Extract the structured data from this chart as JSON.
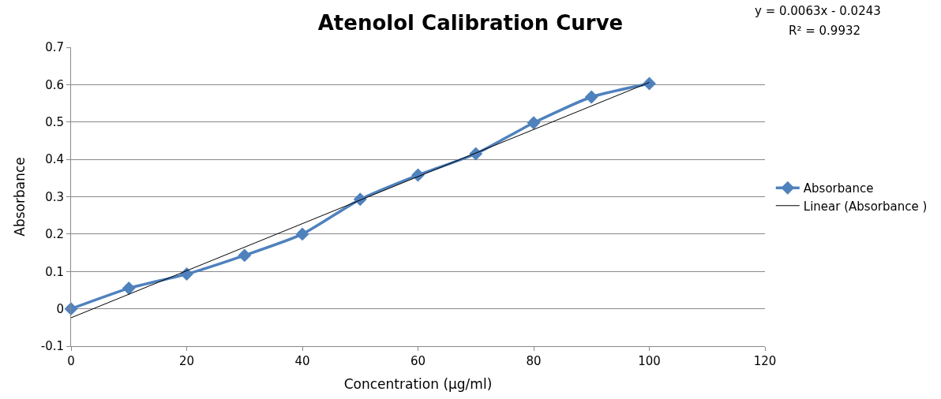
{
  "chart_data": {
    "type": "line",
    "title": "Atenolol Calibration Curve",
    "xlabel": "Concentration (µg/ml)",
    "ylabel": "Absorbance",
    "series": [
      {
        "name": "Absorbance",
        "color": "#4f81bd",
        "marker": "diamond",
        "line_style": "solid",
        "x": [
          0,
          10,
          20,
          30,
          40,
          50,
          60,
          70,
          80,
          90,
          100
        ],
        "values": [
          0,
          0.055,
          0.093,
          0.143,
          0.2,
          0.293,
          0.358,
          0.415,
          0.498,
          0.567,
          0.603
        ]
      },
      {
        "name": "Linear (Absorbance )",
        "color": "#000000",
        "marker": "none",
        "line_style": "solid",
        "x": [
          0,
          100
        ],
        "values": [
          -0.024,
          0.606
        ]
      }
    ],
    "annotations": [
      "y = 0.0063x - 0.0243",
      "R² = 0.9932"
    ],
    "xlim": [
      0,
      120
    ],
    "xticks": [
      0,
      20,
      40,
      60,
      80,
      100,
      120
    ],
    "ylim": [
      -0.1,
      0.7
    ],
    "yticks": [
      -0.1,
      0,
      0.1,
      0.2,
      0.3,
      0.4,
      0.5,
      0.6,
      0.7
    ],
    "grid": "y",
    "legend": "right"
  }
}
